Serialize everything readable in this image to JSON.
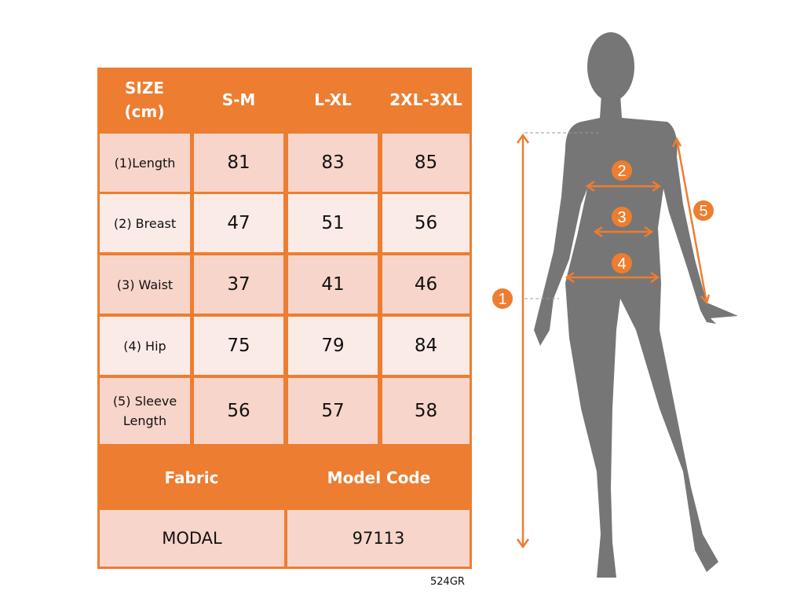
{
  "table": {
    "header": [
      "SIZE\n(cm)",
      "S-M",
      "L-XL",
      "2XL-3XL"
    ],
    "header_size_line1": "SIZE",
    "header_size_line2": "(cm)",
    "rows": [
      {
        "label": "(1)Length",
        "values": [
          "81",
          "83",
          "85"
        ]
      },
      {
        "label": "(2) Breast",
        "values": [
          "47",
          "51",
          "56"
        ]
      },
      {
        "label": "(3) Waist",
        "values": [
          "37",
          "41",
          "46"
        ]
      },
      {
        "label": "(4) Hip",
        "values": [
          "75",
          "79",
          "84"
        ]
      },
      {
        "label_line1": "(5) Sleeve",
        "label_line2": "Length",
        "values": [
          "56",
          "57",
          "58"
        ]
      }
    ],
    "footer_headers": [
      "Fabric",
      "Model Code"
    ],
    "footer_values": [
      "MODAL",
      "97113"
    ]
  },
  "product_code": "524GR",
  "figure": {
    "markers": [
      "1",
      "2",
      "3",
      "4",
      "5"
    ]
  },
  "colors": {
    "accent": "#ED7D31",
    "silhouette": "#767676",
    "cell_dark": "#F8D5CA",
    "cell_light": "#FBEBE6"
  }
}
